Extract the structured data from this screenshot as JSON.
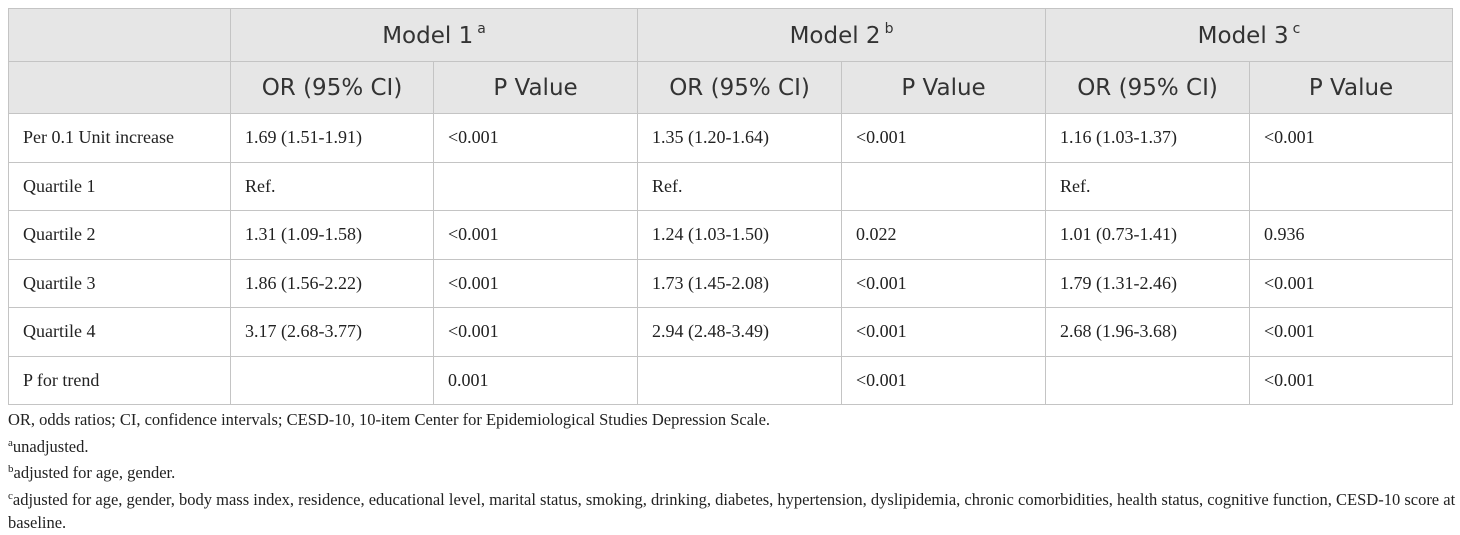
{
  "table": {
    "models": [
      {
        "label": "Model 1",
        "note": "a"
      },
      {
        "label": "Model 2",
        "note": "b"
      },
      {
        "label": "Model 3",
        "note": "c"
      }
    ],
    "subheaders": [
      "OR (95% CI)",
      "P Value",
      "OR (95% CI)",
      "P Value",
      "OR (95% CI)",
      "P Value"
    ],
    "rows": [
      [
        "Per 0.1 Unit increase",
        "1.69 (1.51-1.91)",
        "<0.001",
        "1.35 (1.20-1.64)",
        "<0.001",
        "1.16 (1.03-1.37)",
        "<0.001"
      ],
      [
        "Quartile 1",
        "Ref.",
        null,
        "Ref.",
        null,
        "Ref.",
        null
      ],
      [
        "Quartile 2",
        "1.31 (1.09-1.58)",
        "<0.001",
        "1.24 (1.03-1.50)",
        "0.022",
        "1.01 (0.73-1.41)",
        "0.936"
      ],
      [
        "Quartile 3",
        "1.86 (1.56-2.22)",
        "<0.001",
        "1.73 (1.45-2.08)",
        "<0.001",
        "1.79 (1.31-2.46)",
        "<0.001"
      ],
      [
        "Quartile 4",
        "3.17 (2.68-3.77)",
        "<0.001",
        "2.94 (2.48-3.49)",
        "<0.001",
        "2.68 (1.96-3.68)",
        "<0.001"
      ],
      [
        "P for trend",
        null,
        "0.001",
        null,
        "<0.001",
        null,
        "<0.001"
      ]
    ]
  },
  "footnotes": [
    {
      "text": "OR, odds ratios; CI, confidence intervals; CESD-10, 10-item Center for Epidemiological Studies Depression Scale."
    },
    {
      "mark": "a",
      "text": "unadjusted."
    },
    {
      "mark": "b",
      "text": "adjusted for age, gender."
    },
    {
      "mark": "c",
      "text": "adjusted for age, gender, body mass index, residence, educational level, marital status, smoking, drinking, diabetes, hypertension, dyslipidemia, chronic comorbidities, health status, cognitive function, CESD-10 score at baseline."
    }
  ]
}
